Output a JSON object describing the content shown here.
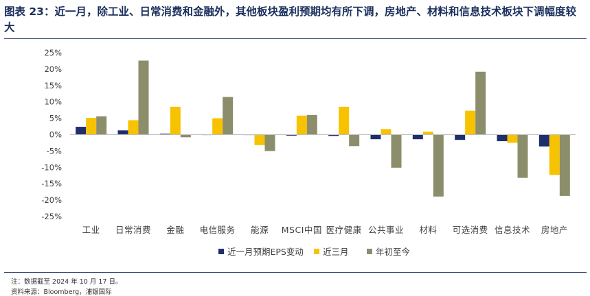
{
  "figure": {
    "title": "图表 23：近一月，除工业、日常消费和金融外，其他板块盈利预期均有所下调，房地产、材料和信息技术板块下调幅度较大"
  },
  "footer": {
    "note": "注：数据截至 2024 年 10 月 17 日。",
    "source": "资料来源：Bloomberg，浦银国际"
  },
  "chart_data": {
    "type": "bar",
    "categories": [
      "工业",
      "日常消费",
      "金融",
      "电信服务",
      "能源",
      "MSCI中国",
      "医疗健康",
      "公共事业",
      "材料",
      "可选消费",
      "信息技术",
      "房地产"
    ],
    "series": [
      {
        "name": "近一月预期EPS变动",
        "color": "#1f2f6e",
        "values": [
          2.4,
          1.3,
          0.3,
          0.0,
          -0.1,
          -0.3,
          -0.4,
          -1.4,
          -1.4,
          -1.6,
          -2.0,
          -3.6
        ]
      },
      {
        "name": "近三月",
        "color": "#f7c200",
        "values": [
          5.1,
          4.4,
          8.5,
          5.0,
          -3.2,
          5.8,
          8.5,
          1.7,
          0.9,
          7.3,
          -2.5,
          -12.3
        ]
      },
      {
        "name": "年初至今",
        "color": "#8c8e6b",
        "values": [
          5.6,
          22.6,
          -0.8,
          11.5,
          -5.0,
          6.0,
          -3.5,
          -10.1,
          -18.9,
          19.2,
          -13.2,
          -18.7
        ]
      }
    ],
    "ylim": [
      -25,
      25
    ],
    "yticks": [
      25,
      20,
      15,
      10,
      5,
      0,
      -5,
      -10,
      -15,
      -20,
      -25
    ],
    "ytick_labels": [
      "25%",
      "20%",
      "15%",
      "10%",
      "5%",
      "0%",
      "-5%",
      "-10%",
      "-15%",
      "-20%",
      "-25%"
    ],
    "legend_position": "bottom",
    "grid": false
  }
}
